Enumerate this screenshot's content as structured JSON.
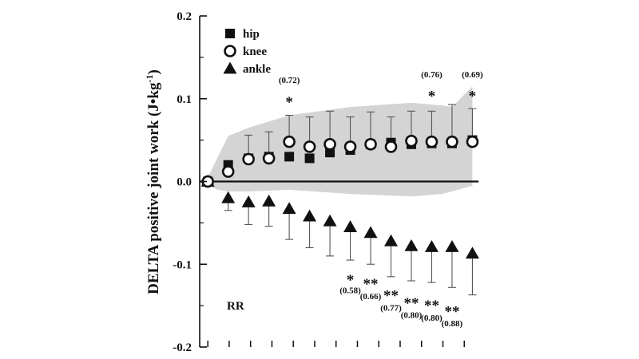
{
  "chart_data": {
    "type": "scatter",
    "x": [
      1,
      2,
      3,
      4,
      5,
      6,
      7,
      8,
      9,
      10,
      11,
      12,
      13,
      14
    ],
    "xlim": [
      0.6,
      15.2
    ],
    "ylim": [
      -0.2,
      0.2
    ],
    "ylabel": "DELTA positive joint work (J•kg",
    "ylabel_sup": "-1",
    "ylabel_close": ")",
    "yticks": [
      {
        "value": 0.2,
        "label": "0.2"
      },
      {
        "value": 0.1,
        "label": "0.1"
      },
      {
        "value": 0.0,
        "label": "0.0"
      },
      {
        "value": -0.1,
        "label": "-0.1"
      },
      {
        "value": -0.2,
        "label": "-0.2"
      }
    ],
    "series": [
      {
        "name": "hip",
        "marker": "square-filled",
        "values": [
          0.0,
          0.02,
          0.028,
          0.03,
          0.03,
          0.028,
          0.035,
          0.038,
          0.045,
          0.047,
          0.045,
          0.046,
          0.046,
          0.05
        ]
      },
      {
        "name": "knee",
        "marker": "circle-open",
        "values": [
          0.0,
          0.012,
          0.027,
          0.028,
          0.048,
          0.042,
          0.045,
          0.042,
          0.045,
          0.042,
          0.049,
          0.048,
          0.048,
          0.048
        ],
        "error_upper": [
          0.0,
          0.018,
          0.056,
          0.06,
          0.08,
          0.078,
          0.085,
          0.078,
          0.084,
          0.078,
          0.085,
          0.085,
          0.093,
          0.088
        ]
      },
      {
        "name": "ankle",
        "marker": "triangle-filled",
        "values": [
          0.0,
          -0.02,
          -0.025,
          -0.024,
          -0.033,
          -0.042,
          -0.048,
          -0.055,
          -0.062,
          -0.072,
          -0.078,
          -0.079,
          -0.079,
          -0.087
        ],
        "error_lower": [
          0.0,
          -0.035,
          -0.052,
          -0.054,
          -0.07,
          -0.08,
          -0.09,
          -0.095,
          -0.1,
          -0.115,
          -0.12,
          -0.122,
          -0.128,
          -0.137
        ]
      }
    ],
    "shaded_band": {
      "x": [
        1,
        1.5,
        2,
        3,
        5,
        8,
        11,
        12.5,
        13,
        14
      ],
      "upper": [
        0.005,
        0.03,
        0.055,
        0.065,
        0.08,
        0.09,
        0.095,
        0.092,
        0.09,
        0.115
      ],
      "lower": [
        -0.005,
        -0.01,
        -0.012,
        -0.012,
        -0.01,
        -0.015,
        -0.018,
        -0.015,
        -0.012,
        -0.005
      ]
    },
    "zero_line": 0.0,
    "upper_annotations": [
      {
        "x": 5,
        "y_star": 0.098,
        "y_p": 0.119,
        "star": "*",
        "p": "(0.72)"
      },
      {
        "x": 12,
        "y_star": 0.105,
        "y_p": 0.126,
        "star": "*",
        "p": "(0.76)"
      },
      {
        "x": 14,
        "y_star": 0.105,
        "y_p": 0.126,
        "star": "*",
        "p": "(0.69)"
      }
    ],
    "lower_annotations": [
      {
        "x": 8,
        "y_star": -0.117,
        "y_p": -0.135,
        "star": "*",
        "p": "(0.58)"
      },
      {
        "x": 9,
        "y_star": -0.122,
        "y_p": -0.142,
        "star": "**",
        "p": "(0.66)"
      },
      {
        "x": 10,
        "y_star": -0.136,
        "y_p": -0.156,
        "star": "**",
        "p": "(0.77)"
      },
      {
        "x": 11,
        "y_star": -0.145,
        "y_p": -0.165,
        "star": "**",
        "p": "(0.80)"
      },
      {
        "x": 12,
        "y_star": -0.148,
        "y_p": -0.168,
        "star": "**",
        "p": "(0.80)"
      },
      {
        "x": 13,
        "y_star": -0.155,
        "y_p": -0.175,
        "star": "**",
        "p": "(0.88)"
      }
    ],
    "corner_note": "RR",
    "legend_position": "top-left",
    "legend": [
      {
        "name": "hip",
        "marker": "square-filled"
      },
      {
        "name": "knee",
        "marker": "circle-open"
      },
      {
        "name": "ankle",
        "marker": "triangle-filled"
      }
    ],
    "grid": false
  },
  "colors": {
    "ink": "#111111",
    "band": "#d4d4d4",
    "errorbar": "#555555"
  }
}
